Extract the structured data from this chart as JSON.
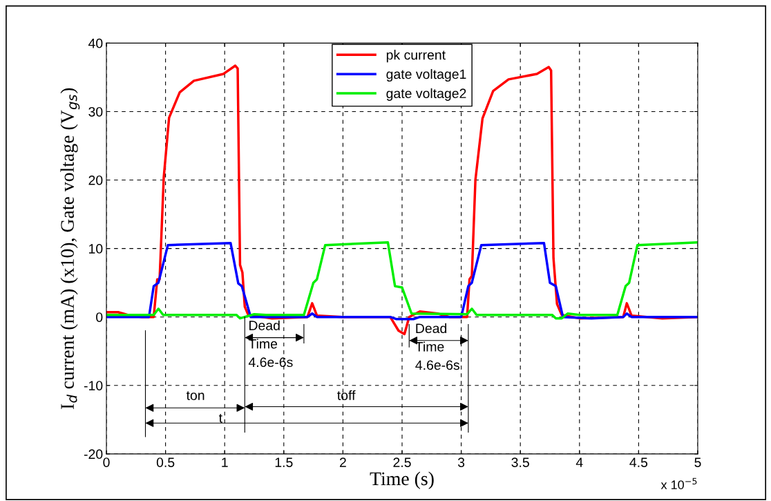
{
  "chart_data": {
    "type": "line",
    "xlabel": "Time (s)",
    "ylabel": "I$_{d}$ current (mA) (x10), Gate voltage (V$_{gs}$)",
    "xlim": [
      0,
      5
    ],
    "ylim": [
      -20,
      40
    ],
    "xticks": [
      0,
      0.5,
      1,
      1.5,
      2,
      2.5,
      3,
      3.5,
      4,
      4.5,
      5
    ],
    "yticks": [
      -20,
      -10,
      0,
      10,
      20,
      30,
      40
    ],
    "grid": true,
    "legend": "top center",
    "series": [
      {
        "name": "pk current",
        "color": "#ff0000",
        "x": [
          0,
          0.1,
          0.2,
          0.3,
          0.4,
          0.43,
          0.45,
          0.485,
          0.53,
          0.62,
          0.74,
          0.99,
          1.09,
          1.11,
          1.13,
          1.15,
          1.17,
          1.2,
          1.4,
          1.7,
          1.74,
          1.78,
          2.0,
          2.4,
          2.47,
          2.52,
          2.56,
          2.65,
          2.8,
          2.9,
          3.05,
          3.07,
          3.09,
          3.12,
          3.18,
          3.27,
          3.4,
          3.64,
          3.74,
          3.76,
          3.78,
          3.81,
          3.85,
          4.0,
          4.37,
          4.4,
          4.44,
          4.7,
          5.0
        ],
        "values": [
          0.7,
          0.7,
          0.2,
          0,
          0,
          5.5,
          5.5,
          20.4,
          29.1,
          32.8,
          34.5,
          35.5,
          36.7,
          36.3,
          7.6,
          6.5,
          1.5,
          0.3,
          -0.2,
          0,
          2.0,
          0.2,
          0,
          0,
          -2.0,
          -2.5,
          0,
          0.8,
          0.5,
          0,
          0,
          5.5,
          6,
          20,
          29,
          33,
          34.7,
          35.5,
          36.5,
          36,
          8.6,
          1.9,
          0.3,
          -0.2,
          0,
          2.0,
          0.2,
          -0.2,
          0
        ]
      },
      {
        "name": "gate voltage1",
        "color": "#0000ff",
        "x": [
          0,
          0.36,
          0.4,
          0.44,
          0.52,
          1.05,
          1.115,
          1.145,
          1.22,
          1.7,
          1.74,
          1.78,
          2.4,
          2.45,
          2.6,
          2.65,
          3.0,
          3.06,
          3.09,
          3.17,
          3.7,
          3.75,
          3.8,
          3.86,
          4.1,
          4.37,
          4.4,
          4.44,
          5.0
        ],
        "values": [
          0,
          0,
          4.5,
          5.0,
          10.5,
          10.8,
          4.9,
          4.5,
          0,
          0,
          0.5,
          0,
          0,
          -0.3,
          -0.3,
          0,
          0,
          4.5,
          5.0,
          10.5,
          10.8,
          5.0,
          4.5,
          0,
          -0.2,
          0,
          0.5,
          0,
          0
        ]
      },
      {
        "name": "gate voltage2",
        "color": "#00ee00",
        "x": [
          0,
          0.4,
          0.44,
          0.48,
          1.1,
          1.13,
          1.25,
          1.35,
          1.67,
          1.75,
          1.78,
          1.85,
          2.38,
          2.44,
          2.5,
          2.58,
          3.05,
          3.09,
          3.13,
          3.77,
          3.8,
          3.85,
          3.9,
          4.0,
          4.32,
          4.39,
          4.42,
          4.49,
          5.0
        ],
        "values": [
          0.3,
          0.3,
          1.2,
          0.3,
          0.3,
          -0.2,
          0.4,
          0.3,
          0.3,
          5.0,
          5.5,
          10.5,
          10.9,
          4.5,
          4.3,
          0.5,
          0.4,
          1.2,
          0.3,
          0.3,
          -0.2,
          -0.2,
          0.5,
          0.3,
          0.3,
          4.5,
          5.0,
          10.5,
          10.9
        ]
      }
    ],
    "annotations": [
      "Dead\nTime\n4.6e-6s",
      "Dead\nTime\n4.6e-6s",
      "ton",
      "toff",
      "t",
      "x 10$^{−5}$"
    ]
  }
}
